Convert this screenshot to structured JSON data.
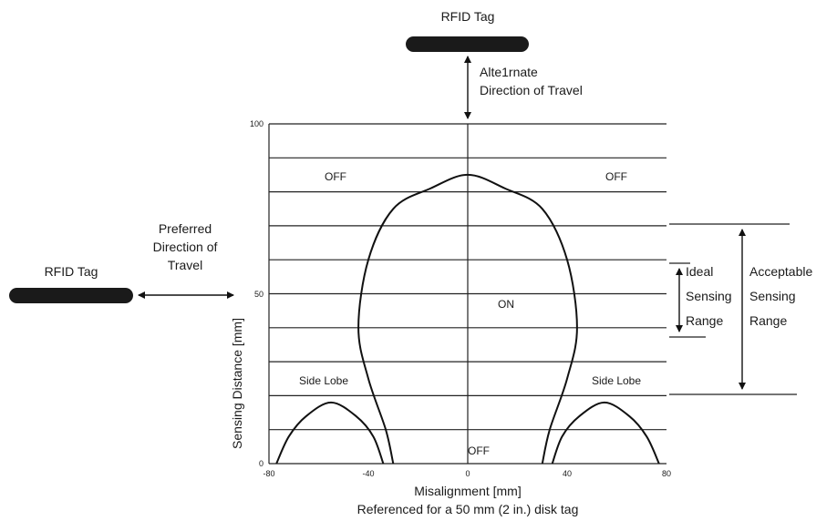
{
  "diagram": {
    "top_tag_label": "RFID Tag",
    "left_tag_label": "RFID Tag",
    "alternate_direction": [
      "Alte1rnate",
      "Direction of Travel"
    ],
    "preferred_direction": [
      "Preferred",
      "Direction of",
      "Travel"
    ],
    "ideal_range": [
      "Ideal",
      "Sensing",
      "Range"
    ],
    "acceptable_range": [
      "Acceptable",
      "Sensing",
      "Range"
    ],
    "region_labels": {
      "off_top_left": "OFF",
      "off_top_right": "OFF",
      "on_center": "ON",
      "off_bottom": "OFF",
      "side_lobe_left": "Side Lobe",
      "side_lobe_right": "Side Lobe"
    },
    "caption": "Referenced for a 50 mm (2 in.) disk tag"
  },
  "chart_data": {
    "type": "line",
    "xlabel": "Misalignment [mm]",
    "ylabel": "Sensing Distance [mm]",
    "xlim": [
      -80,
      80
    ],
    "ylim": [
      0,
      100
    ],
    "x_ticks": [
      "-80",
      "-40",
      "0",
      "40",
      "80"
    ],
    "y_ticks": [
      "0",
      "50",
      "100"
    ],
    "grid": "horizontal lines every 10 mm",
    "series": [
      {
        "points": [
          [
            -30,
            0
          ],
          [
            -33,
            10
          ],
          [
            -40,
            25
          ],
          [
            -44,
            40
          ],
          [
            -40,
            60
          ],
          [
            -30,
            75
          ],
          [
            -15,
            81
          ],
          [
            0,
            85
          ],
          [
            15,
            81
          ],
          [
            30,
            75
          ],
          [
            40,
            60
          ],
          [
            44,
            40
          ],
          [
            40,
            25
          ],
          [
            33,
            10
          ],
          [
            30,
            0
          ]
        ]
      },
      {
        "points": [
          [
            -77,
            0
          ],
          [
            -72,
            8
          ],
          [
            -65,
            14
          ],
          [
            -55,
            18
          ],
          [
            -45,
            14
          ],
          [
            -38,
            8
          ],
          [
            -34,
            0
          ]
        ]
      },
      {
        "points": [
          [
            34,
            0
          ],
          [
            38,
            8
          ],
          [
            45,
            14
          ],
          [
            55,
            18
          ],
          [
            65,
            14
          ],
          [
            72,
            8
          ],
          [
            77,
            0
          ]
        ]
      }
    ],
    "ideal_sensing_range": [
      37,
      60
    ],
    "acceptable_sensing_range": [
      20,
      70
    ]
  }
}
